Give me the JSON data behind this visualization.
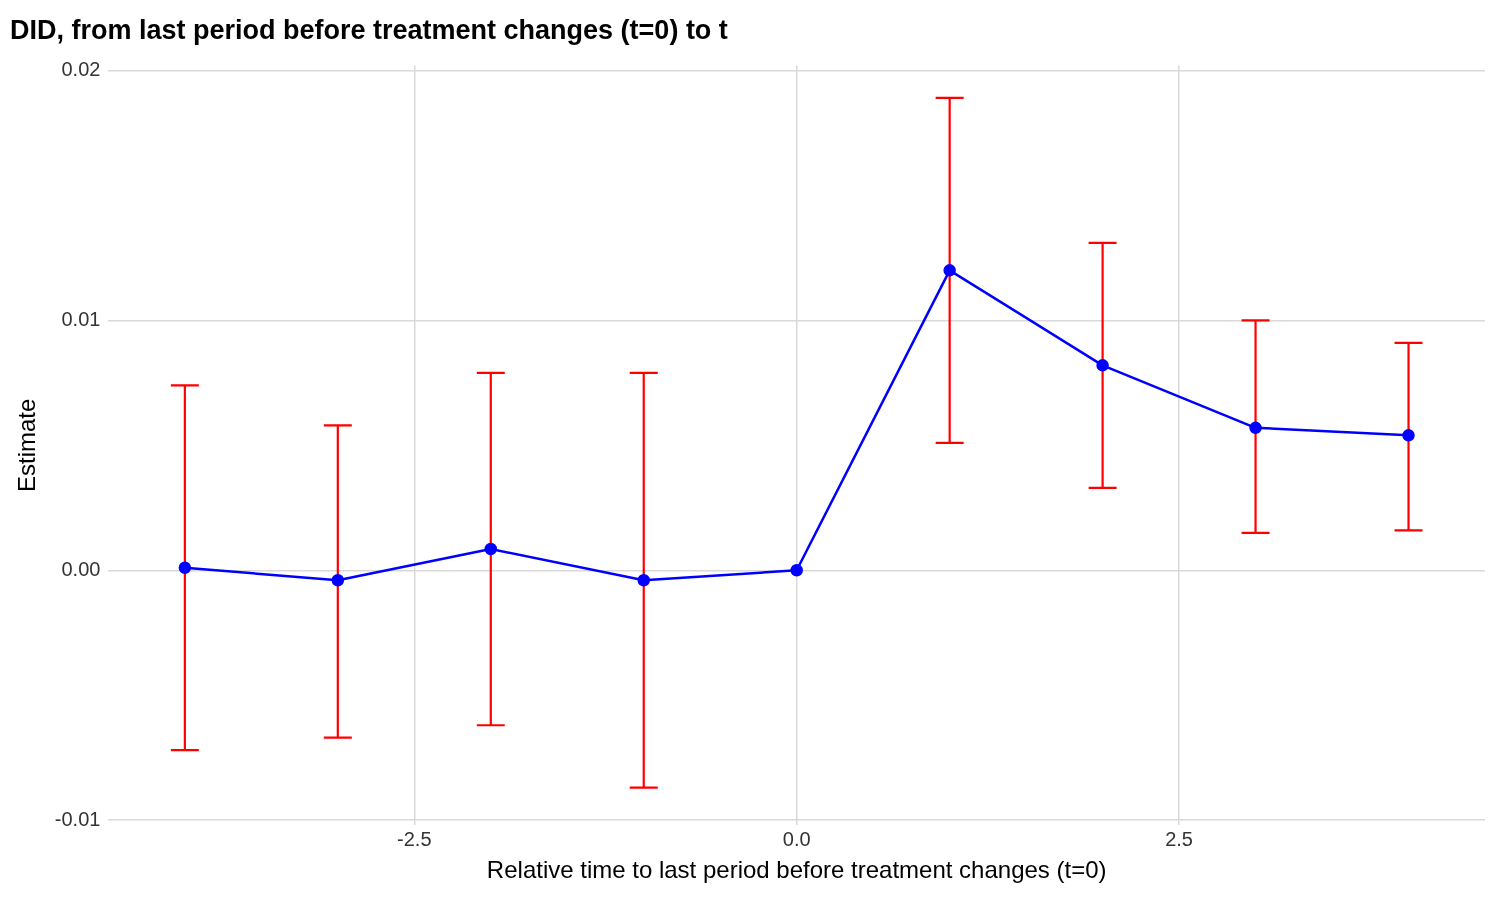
{
  "chart_data": {
    "type": "line",
    "title": "DID, from last period before treatment changes (t=0) to t",
    "xlabel": "Relative time to last period before treatment changes (t=0)",
    "ylabel": "Estimate",
    "x": [
      -4,
      -3,
      -2,
      -1,
      0,
      1,
      2,
      3,
      4
    ],
    "series": [
      {
        "color": "#0000ff",
        "values": [
          0.0001,
          -0.0004,
          0.00085,
          -0.0004,
          0,
          0.012,
          0.0082,
          0.0057,
          0.0054
        ],
        "errors": [
          [
            -0.0072,
            0.0074
          ],
          [
            -0.0067,
            0.0058
          ],
          [
            -0.0062,
            0.0079
          ],
          [
            -0.0087,
            0.0079
          ],
          null,
          [
            0.0051,
            0.0189
          ],
          [
            0.0033,
            0.0131
          ],
          [
            0.0015,
            0.01
          ],
          [
            0.0016,
            0.0091
          ]
        ]
      }
    ],
    "xlim": [
      -4.5,
      4.5
    ],
    "xticks": [
      {
        "value": -2.5,
        "label": "-2.5"
      },
      {
        "value": 0,
        "label": "0.0"
      },
      {
        "value": 2.5,
        "label": "2.5"
      }
    ],
    "ylim": [
      -0.0102,
      0.0202
    ],
    "yticks": [
      {
        "value": -0.01,
        "label": "-0.01"
      },
      {
        "value": 0,
        "label": "0.00"
      },
      {
        "value": 0.01,
        "label": "0.01"
      },
      {
        "value": 0.02,
        "label": "0.02"
      }
    ],
    "grid": true,
    "legend": false,
    "marker": "circle",
    "line_style": "solid"
  }
}
